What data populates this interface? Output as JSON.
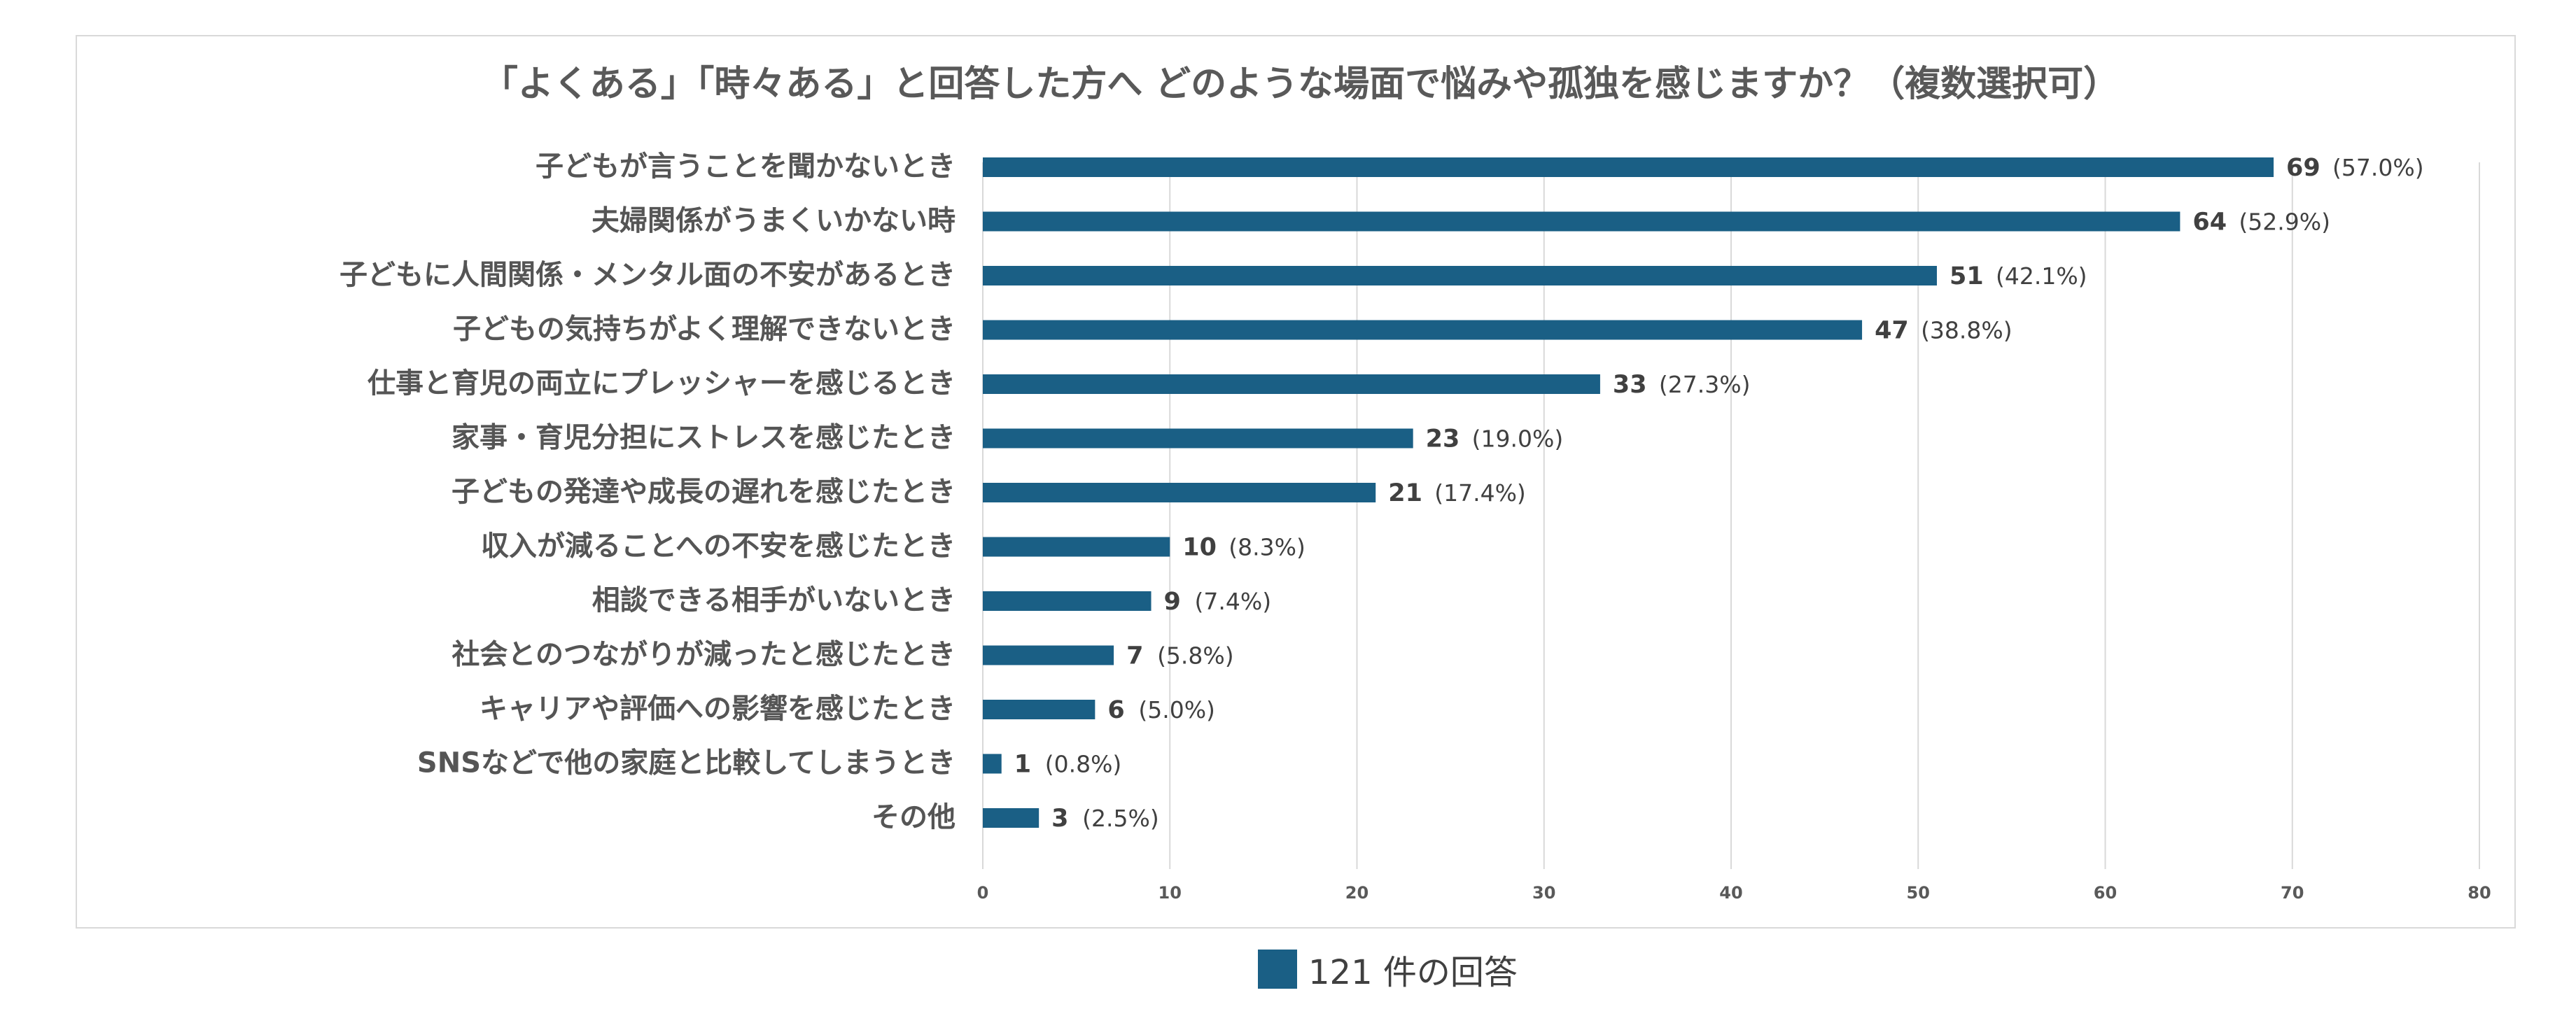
{
  "chart_data": {
    "type": "bar",
    "orientation": "horizontal",
    "title": "「よくある」「時々ある」と回答した方へ どのような場面で悩みや孤独を感じますか？（複数選択可）",
    "categories": [
      "子どもが言うことを聞かないとき",
      "夫婦関係がうまくいかない時",
      "子どもに人間関係・メンタル面の不安があるとき",
      "子どもの気持ちがよく理解できないとき",
      "仕事と育児の両立にプレッシャーを感じるとき",
      "家事・育児分担にストレスを感じたとき",
      "子どもの発達や成長の遅れを感じたとき",
      "収入が減ることへの不安を感じたとき",
      "相談できる相手がいないとき",
      "社会とのつながりが減ったと感じたとき",
      "キャリアや評価への影響を感じたとき",
      "SNSなどで他の家庭と比較してしまうとき",
      "その他"
    ],
    "values": [
      69,
      64,
      51,
      47,
      33,
      23,
      21,
      10,
      9,
      7,
      6,
      1,
      3
    ],
    "percent_labels": [
      "(57.0%)",
      "(52.9%)",
      "(42.1%)",
      "(38.8%)",
      "(27.3%)",
      "(19.0%)",
      "(17.4%)",
      "(8.3%)",
      "(7.4%)",
      "(5.8%)",
      "(5.0%)",
      "(0.8%)",
      "(2.5%)"
    ],
    "xlim": [
      0,
      80
    ],
    "xticks": [
      0,
      10,
      20,
      30,
      40,
      50,
      60,
      70,
      80
    ],
    "grid": true,
    "legend": {
      "label": "121 件の回答",
      "position": "bottom"
    },
    "bar_color": "#1a5f85"
  }
}
